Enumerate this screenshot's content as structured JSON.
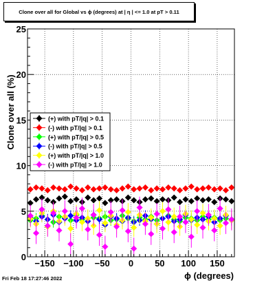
{
  "title": "Clone  over all for Global vs ϕ (degrees) at |  η | <= 1.0 at pT > 0.11",
  "timestamp": "Fri Feb 18 17:27:46 2022",
  "chart_data": {
    "type": "scatter",
    "title": "Clone  over all for Global vs ϕ (degrees) at |  η | <= 1.0 at pT > 0.11",
    "xlabel": "ϕ (degrees)",
    "ylabel": "Clone  over all (%)",
    "xlim": [
      -180,
      180
    ],
    "ylim": [
      0,
      25
    ],
    "x_ticks": [
      -150,
      -100,
      -50,
      0,
      50,
      100,
      150
    ],
    "x_tick_labels": [
      "−150",
      "−100",
      "−50",
      "0",
      "50",
      "100",
      "150"
    ],
    "y_ticks": [
      0,
      5,
      10,
      15,
      20,
      25
    ],
    "y_tick_labels": [
      "0",
      "5",
      "10",
      "15",
      "20",
      "25"
    ],
    "grid": true,
    "legend_position": "left-middle",
    "legend": [
      "(+) with pT/|q| > 0.1",
      "(-) with pT/|q| > 0.1",
      "(+) with pT/|q| > 0.5",
      "(-) with pT/|q| > 0.5",
      "(+) with pT/|q| > 1.0",
      "(-) with pT/|q| > 1.0"
    ],
    "series": [
      {
        "color": "#000000",
        "error": 0.3,
        "x": [
          -175,
          -165,
          -155,
          -145,
          -135,
          -125,
          -115,
          -105,
          -95,
          -85,
          -75,
          -65,
          -55,
          -45,
          -35,
          -25,
          -15,
          -5,
          5,
          15,
          25,
          35,
          45,
          55,
          65,
          75,
          85,
          95,
          105,
          115,
          125,
          135,
          145,
          155,
          165,
          175
        ],
        "y": [
          5.9,
          6.3,
          6.5,
          6.2,
          6.0,
          6.4,
          6.6,
          6.1,
          6.3,
          6.0,
          6.5,
          6.2,
          6.4,
          5.9,
          6.2,
          6.3,
          6.1,
          6.5,
          6.2,
          6.0,
          6.3,
          6.4,
          6.1,
          6.3,
          6.2,
          6.5,
          6.0,
          6.3,
          6.1,
          6.4,
          6.2,
          6.3,
          6.0,
          6.4,
          6.3,
          6.1
        ]
      },
      {
        "color": "#ff0000",
        "error": 0.3,
        "x": [
          -175,
          -165,
          -155,
          -145,
          -135,
          -125,
          -115,
          -105,
          -95,
          -85,
          -75,
          -65,
          -55,
          -45,
          -35,
          -25,
          -15,
          -5,
          5,
          15,
          25,
          35,
          45,
          55,
          65,
          75,
          85,
          95,
          105,
          115,
          125,
          135,
          145,
          155,
          165,
          175
        ],
        "y": [
          7.4,
          7.6,
          7.5,
          7.3,
          7.6,
          7.5,
          7.4,
          7.7,
          7.5,
          7.3,
          7.6,
          7.4,
          7.5,
          7.6,
          7.4,
          7.3,
          7.5,
          7.7,
          7.4,
          7.5,
          7.6,
          7.3,
          7.5,
          7.4,
          7.6,
          7.5,
          7.3,
          7.5,
          7.7,
          7.4,
          7.5,
          7.6,
          7.4,
          7.5,
          7.3,
          7.6
        ]
      },
      {
        "color": "#00ff00",
        "error": 0.6,
        "x": [
          -175,
          -165,
          -155,
          -145,
          -135,
          -125,
          -115,
          -105,
          -95,
          -85,
          -75,
          -65,
          -55,
          -45,
          -35,
          -25,
          -15,
          -5,
          5,
          15,
          25,
          35,
          45,
          55,
          65,
          75,
          85,
          95,
          105,
          115,
          125,
          135,
          145,
          155,
          165,
          175
        ],
        "y": [
          4.0,
          4.2,
          4.5,
          4.1,
          3.8,
          4.4,
          4.3,
          4.0,
          4.6,
          4.1,
          3.9,
          4.3,
          4.2,
          4.4,
          4.0,
          4.1,
          4.5,
          4.2,
          3.9,
          4.3,
          4.1,
          4.4,
          4.0,
          4.2,
          4.5,
          4.1,
          3.9,
          4.3,
          4.2,
          4.0,
          4.4,
          4.1,
          4.3,
          4.0,
          4.2,
          4.1
        ]
      },
      {
        "color": "#0000ff",
        "error": 0.6,
        "x": [
          -175,
          -165,
          -155,
          -145,
          -135,
          -125,
          -115,
          -105,
          -95,
          -85,
          -75,
          -65,
          -55,
          -45,
          -35,
          -25,
          -15,
          -5,
          5,
          15,
          25,
          35,
          45,
          55,
          65,
          75,
          85,
          95,
          105,
          115,
          125,
          135,
          145,
          155,
          165,
          175
        ],
        "y": [
          4.3,
          3.9,
          4.4,
          4.1,
          4.6,
          3.8,
          4.2,
          4.5,
          4.0,
          4.3,
          3.9,
          4.6,
          4.1,
          3.5,
          4.4,
          4.2,
          3.9,
          4.3,
          3.8,
          4.0,
          4.5,
          4.1,
          3.6,
          4.2,
          4.4,
          3.9,
          4.1,
          4.6,
          4.0,
          4.3,
          4.1,
          4.4,
          3.8,
          4.2,
          4.5,
          4.0
        ]
      },
      {
        "color": "#ffff00",
        "error": 1.0,
        "x": [
          -175,
          -165,
          -155,
          -145,
          -135,
          -125,
          -115,
          -105,
          -95,
          -85,
          -75,
          -65,
          -55,
          -45,
          -35,
          -25,
          -15,
          -5,
          5,
          15,
          25,
          35,
          45,
          55,
          65,
          75,
          85,
          95,
          105,
          115,
          125,
          135,
          145,
          155,
          165,
          175
        ],
        "y": [
          4.2,
          3.6,
          4.8,
          3.3,
          5.0,
          3.9,
          4.4,
          3.1,
          4.7,
          3.8,
          4.2,
          3.4,
          5.1,
          3.7,
          4.5,
          3.5,
          4.0,
          4.9,
          3.2,
          4.6,
          3.9,
          4.3,
          3.6,
          5.0,
          3.8,
          4.4,
          3.3,
          4.7,
          4.1,
          3.5,
          4.8,
          3.9,
          4.2,
          3.4,
          4.6,
          4.0
        ]
      },
      {
        "color": "#ff00ff",
        "error": 1.2,
        "x": [
          -175,
          -165,
          -155,
          -145,
          -135,
          -125,
          -115,
          -105,
          -95,
          -85,
          -75,
          -65,
          -55,
          -45,
          -35,
          -25,
          -15,
          -5,
          5,
          15,
          25,
          35,
          45,
          55,
          65,
          75,
          85,
          95,
          105,
          115,
          125,
          135,
          145,
          155,
          165,
          175
        ],
        "y": [
          4.5,
          2.6,
          5.2,
          3.4,
          4.8,
          2.9,
          5.0,
          1.4,
          4.3,
          5.3,
          3.0,
          4.6,
          2.4,
          1.1,
          4.9,
          3.3,
          5.1,
          2.8,
          0.9,
          5.4,
          3.6,
          2.5,
          4.7,
          3.1,
          5.2,
          2.7,
          4.4,
          3.8,
          2.2,
          5.0,
          3.2,
          4.6,
          2.9,
          5.3,
          3.7,
          4.1
        ]
      }
    ]
  }
}
